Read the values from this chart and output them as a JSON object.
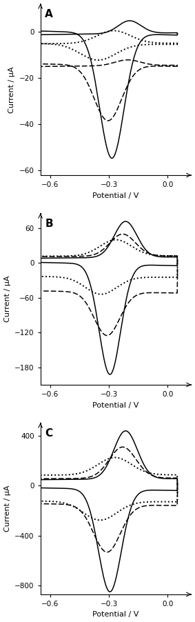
{
  "panels": [
    {
      "label": "A",
      "ylim": [
        -62,
        12
      ],
      "yticks": [
        -60,
        -40,
        -20,
        0
      ],
      "ylabel": "Current / μA",
      "xlabel": "Potential / V"
    },
    {
      "label": "B",
      "ylim": [
        -210,
        85
      ],
      "yticks": [
        -180,
        -120,
        -60,
        0,
        60
      ],
      "ylabel": "Current / μA",
      "xlabel": "Potential / V"
    },
    {
      "label": "C",
      "ylim": [
        -870,
        500
      ],
      "yticks": [
        -800,
        -400,
        0,
        400
      ],
      "ylabel": "Current / μA",
      "xlabel": "Potential / V"
    }
  ],
  "xlim": [
    -0.65,
    0.12
  ],
  "xticks": [
    -0.6,
    -0.3,
    0.0
  ],
  "line_color": "#000000",
  "background_color": "#ffffff",
  "fontsize_label": 8,
  "fontsize_tick": 7.5,
  "fontsize_panel_label": 11
}
